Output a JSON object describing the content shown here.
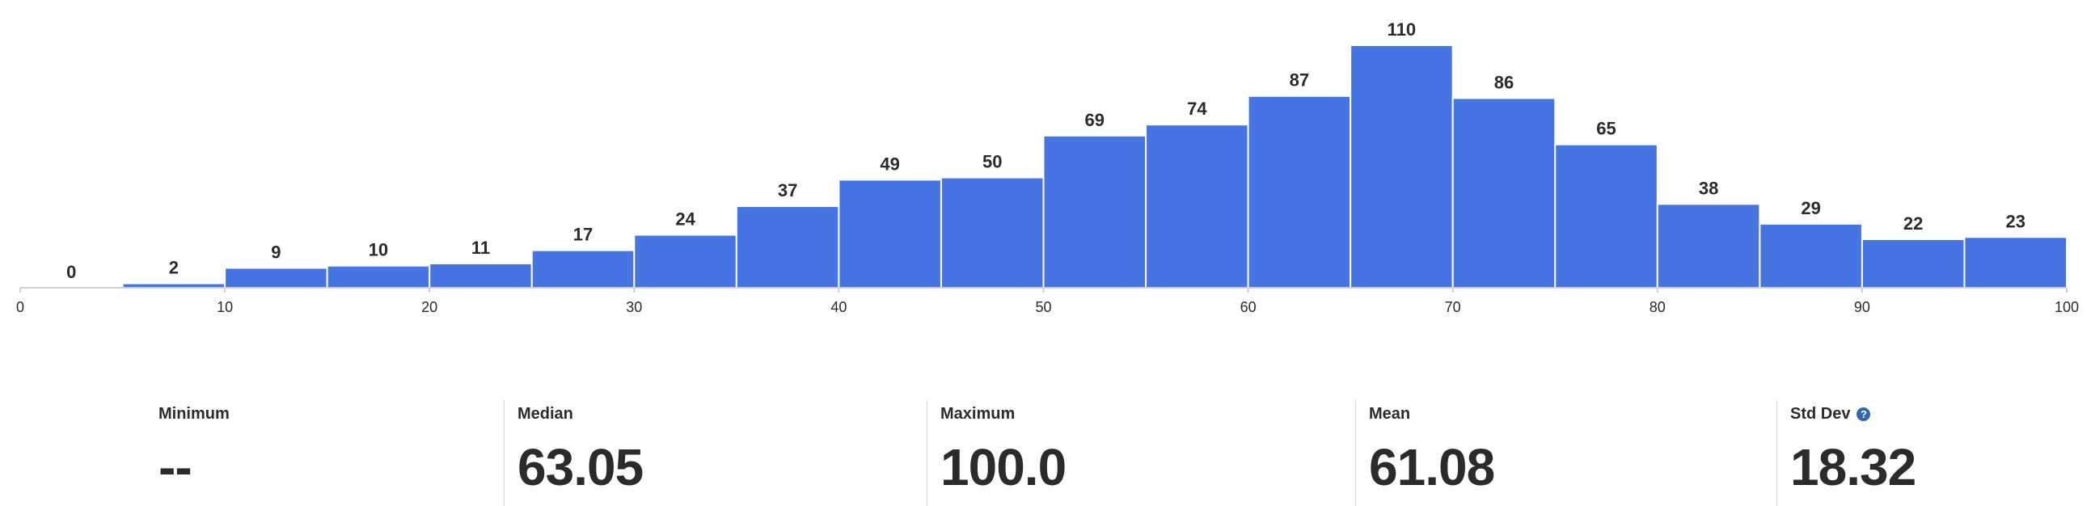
{
  "chart_data": {
    "type": "bar",
    "bins": [
      {
        "start": 0,
        "end": 5,
        "count": 0
      },
      {
        "start": 5,
        "end": 10,
        "count": 2
      },
      {
        "start": 10,
        "end": 15,
        "count": 9
      },
      {
        "start": 15,
        "end": 20,
        "count": 10
      },
      {
        "start": 20,
        "end": 25,
        "count": 11
      },
      {
        "start": 25,
        "end": 30,
        "count": 17
      },
      {
        "start": 30,
        "end": 35,
        "count": 24
      },
      {
        "start": 35,
        "end": 40,
        "count": 37
      },
      {
        "start": 40,
        "end": 45,
        "count": 49
      },
      {
        "start": 45,
        "end": 50,
        "count": 50
      },
      {
        "start": 50,
        "end": 55,
        "count": 69
      },
      {
        "start": 55,
        "end": 60,
        "count": 74
      },
      {
        "start": 60,
        "end": 65,
        "count": 87
      },
      {
        "start": 65,
        "end": 70,
        "count": 110
      },
      {
        "start": 70,
        "end": 75,
        "count": 86
      },
      {
        "start": 75,
        "end": 80,
        "count": 65
      },
      {
        "start": 80,
        "end": 85,
        "count": 38
      },
      {
        "start": 85,
        "end": 90,
        "count": 29
      },
      {
        "start": 90,
        "end": 95,
        "count": 22
      },
      {
        "start": 95,
        "end": 100,
        "count": 23
      }
    ],
    "xticks": [
      "0",
      "10",
      "20",
      "30",
      "40",
      "50",
      "60",
      "70",
      "80",
      "90",
      "100"
    ],
    "xlim": [
      0,
      100
    ],
    "ylim": [
      0,
      110
    ],
    "title": "",
    "xlabel": "",
    "ylabel": "",
    "grid": false,
    "bar_color": "#4674e2",
    "axis_color": "#cfcfcf"
  },
  "stats": {
    "minimum": {
      "label": "Minimum",
      "value": "--"
    },
    "median": {
      "label": "Median",
      "value": "63.05"
    },
    "maximum": {
      "label": "Maximum",
      "value": "100.0"
    },
    "mean": {
      "label": "Mean",
      "value": "61.08"
    },
    "std_dev": {
      "label": "Std Dev",
      "value": "18.32",
      "icon": "help-icon",
      "icon_glyph": "?",
      "icon_color": "#2f67b1"
    }
  }
}
